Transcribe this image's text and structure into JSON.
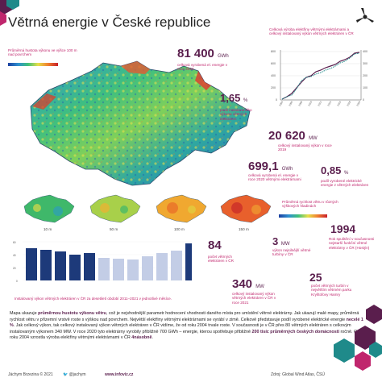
{
  "title": "Větrná energie v České republice",
  "map": {
    "legend_title": "Průměrná hustota výkonu ve výšce 100 m nad povrchem",
    "scale_min": "",
    "scale_mid": "",
    "scale_max": ""
  },
  "stats": {
    "s1_value": "81 400",
    "s1_unit": "GWh",
    "s1_desc": "celková vyrobená el. energie v roce 2020",
    "s2_value": "1,65",
    "s2_unit": "%",
    "s2_desc": "podíl instalovaného výkonu větrných elektráren",
    "s3_value": "20 620",
    "s3_unit": "MW",
    "s3_desc": "celkový instalovaný výkon v roce 2019",
    "s4_value": "699,1",
    "s4_unit": "GWh",
    "s4_desc": "celková vyrobená el. energie v roce 2020 větrnými elektrárnami",
    "s5_value": "0,85",
    "s5_unit": "%",
    "s5_desc": "podíl vyrobené elektrické energie z větrných elektráren"
  },
  "line_chart": {
    "title": "Celková výroba elektřiny větrnými elektrárnami a celkový instalovaný výkon větrných elektráren v ČR"
  },
  "speed_maps": {
    "legend_title": "Průměrná rychlost větru v různých výškových hladinách",
    "labels": [
      "10 m",
      "50 m",
      "100 m",
      "150 m"
    ]
  },
  "bar_chart": {
    "caption": "Instalovaný výkon větrných elektráren v ČR za desetiletí období 2011–2021 v jednotlivé měsíce."
  },
  "facts": {
    "f1_value": "84",
    "f1_desc": "počet větrných elektráren v ČR",
    "f2_value": "3",
    "f2_unit": "MW",
    "f2_desc": "výkon nejsilnější větrné turbíny v ČR",
    "f3_value": "1994",
    "f3_desc": "Rok spuštění v současnosti nejstarší funkční větrné elektrárny v ČR (Hostýn)",
    "f4_value": "340",
    "f4_unit": "MW",
    "f4_desc": "celkový instalovaný výkon větrných elektráren v ČR v roce 2021",
    "f5_value": "25",
    "f5_desc": "počet větrných turbín v největším větrném parku Kryštofovy Hamry"
  },
  "description": {
    "p1a": "Mapa ukazuje ",
    "p1b": "průměrnou hustotu výkonu větru",
    "p1c": ", což je nejvhodnější parametr hodnocení vhodnosti daného místa pro umístění větrné elektrárny. Jak ukazují malé mapy, průměrná rychlost větru v přízemní vrstvě roste s výškou nad povrchem. Největší elektřiny větrnými elektrárnami se vyrábí v zimě. Celkově představuje podíl vyrobené elektrické energie ",
    "p1d": "necelé 1 %",
    "p1e": ". Jak celkový výkon, tak celkový instalovaný výkon větrných elektráren v ČR vidíme, že od roku 2004 trvale roste. V současnosti je v ČR přes 80 větrných elektráren s celkovým instalovaným výkonem 340 MW. V roce 2020 tyto elektrárny vyrobily přibližně 700 GWh – energie, kterou spotřebuje přibližně ",
    "p1f": "200 tisíc průměrných českých domácností",
    "p1g": " ročně. Od roku 2004 vzrostla výroba elektřiny větrnými elektrárnami v ČR ",
    "p1h": "4násobně",
    "p1i": "."
  },
  "footer": {
    "author": "Jáchym Brzezina © 2021",
    "handle": "@jachym",
    "site": "www.infoviz.cz",
    "source": "Zdroj: Global Wind Atlas, ČSÚ"
  },
  "colors": {
    "plum": "#5a1e4d",
    "magenta": "#c0266d",
    "teal": "#1f8a8a",
    "bar_navy": "#1d3a7a",
    "bar_light": "#c3cde6"
  }
}
